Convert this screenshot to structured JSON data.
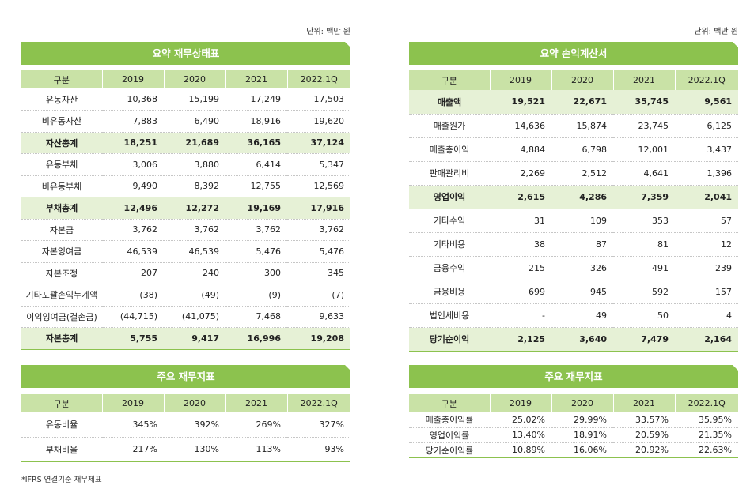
{
  "unit_label": "단위: 백만 원",
  "columns": [
    "구분",
    "2019",
    "2020",
    "2021",
    "2022.1Q"
  ],
  "balance_sheet": {
    "title": "요약 재무상태표",
    "rows": [
      {
        "label": "유동자산",
        "values": [
          "10,368",
          "15,199",
          "17,249",
          "17,503"
        ],
        "total": false
      },
      {
        "label": "비유동자산",
        "values": [
          "7,883",
          "6,490",
          "18,916",
          "19,620"
        ],
        "total": false
      },
      {
        "label": "자산총계",
        "values": [
          "18,251",
          "21,689",
          "36,165",
          "37,124"
        ],
        "total": true
      },
      {
        "label": "유동부채",
        "values": [
          "3,006",
          "3,880",
          "6,414",
          "5,347"
        ],
        "total": false
      },
      {
        "label": "비유동부채",
        "values": [
          "9,490",
          "8,392",
          "12,755",
          "12,569"
        ],
        "total": false
      },
      {
        "label": "부채총계",
        "values": [
          "12,496",
          "12,272",
          "19,169",
          "17,916"
        ],
        "total": true
      },
      {
        "label": "자본금",
        "values": [
          "3,762",
          "3,762",
          "3,762",
          "3,762"
        ],
        "total": false
      },
      {
        "label": "자본잉여금",
        "values": [
          "46,539",
          "46,539",
          "5,476",
          "5,476"
        ],
        "total": false
      },
      {
        "label": "자본조정",
        "values": [
          "207",
          "240",
          "300",
          "345"
        ],
        "total": false
      },
      {
        "label": "기타포괄손익누계액",
        "values": [
          "(38)",
          "(49)",
          "(9)",
          "(7)"
        ],
        "total": false
      },
      {
        "label": "이익잉여금(결손금)",
        "values": [
          "(44,715)",
          "(41,075)",
          "7,468",
          "9,633"
        ],
        "total": false
      },
      {
        "label": "자본총계",
        "values": [
          "5,755",
          "9,417",
          "16,996",
          "19,208"
        ],
        "total": true
      }
    ]
  },
  "income_statement": {
    "title": "요약 손익계산서",
    "rows": [
      {
        "label": "매출액",
        "values": [
          "19,521",
          "22,671",
          "35,745",
          "9,561"
        ],
        "total": true
      },
      {
        "label": "매출원가",
        "values": [
          "14,636",
          "15,874",
          "23,745",
          "6,125"
        ],
        "total": false
      },
      {
        "label": "매출총이익",
        "values": [
          "4,884",
          "6,798",
          "12,001",
          "3,437"
        ],
        "total": false
      },
      {
        "label": "판매관리비",
        "values": [
          "2,269",
          "2,512",
          "4,641",
          "1,396"
        ],
        "total": false
      },
      {
        "label": "영업이익",
        "values": [
          "2,615",
          "4,286",
          "7,359",
          "2,041"
        ],
        "total": true
      },
      {
        "label": "기타수익",
        "values": [
          "31",
          "109",
          "353",
          "57"
        ],
        "total": false
      },
      {
        "label": "기타비용",
        "values": [
          "38",
          "87",
          "81",
          "12"
        ],
        "total": false
      },
      {
        "label": "금융수익",
        "values": [
          "215",
          "326",
          "491",
          "239"
        ],
        "total": false
      },
      {
        "label": "금융비용",
        "values": [
          "699",
          "945",
          "592",
          "157"
        ],
        "total": false
      },
      {
        "label": "법인세비용",
        "values": [
          "-",
          "49",
          "50",
          "4"
        ],
        "total": false
      },
      {
        "label": "당기순이익",
        "values": [
          "2,125",
          "3,640",
          "7,479",
          "2,164"
        ],
        "total": true
      }
    ]
  },
  "ratios_left": {
    "title": "주요 재무지표",
    "rows": [
      {
        "label": "유동비율",
        "values": [
          "345%",
          "392%",
          "269%",
          "327%"
        ],
        "total": false
      },
      {
        "label": "부채비율",
        "values": [
          "217%",
          "130%",
          "113%",
          "93%"
        ],
        "total": false
      }
    ]
  },
  "ratios_right": {
    "title": "주요 재무지표",
    "rows": [
      {
        "label": "매출총이익률",
        "values": [
          "25.02%",
          "29.99%",
          "33.57%",
          "35.95%"
        ],
        "total": false
      },
      {
        "label": "영업이익률",
        "values": [
          "13.40%",
          "18.91%",
          "20.59%",
          "21.35%"
        ],
        "total": false
      },
      {
        "label": "당기순이익률",
        "values": [
          "10.89%",
          "16.06%",
          "20.92%",
          "22.63%"
        ],
        "total": false
      }
    ]
  },
  "footnote": "*IFRS 연결기준 재무제표"
}
